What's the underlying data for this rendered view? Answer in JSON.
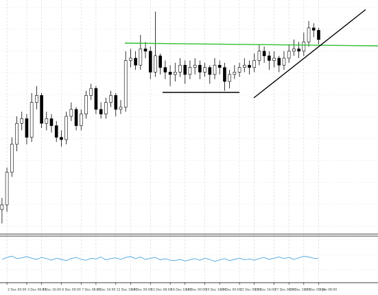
{
  "chart_data": {
    "type": "candlestick",
    "open": [
      10,
      12,
      26,
      38,
      47,
      49,
      41,
      56,
      59,
      47,
      49,
      46,
      41,
      40,
      50,
      53,
      46,
      51,
      59,
      62,
      53,
      51,
      56,
      59,
      53,
      54,
      74,
      75,
      72,
      79,
      78,
      69,
      76,
      71,
      69,
      68,
      69,
      72,
      68,
      71,
      72,
      69,
      71,
      68,
      72,
      71,
      65,
      68,
      69,
      71,
      72,
      71,
      74,
      78,
      76,
      74,
      75,
      72,
      75,
      78,
      79,
      78,
      82,
      88,
      87
    ],
    "high": [
      15,
      28,
      41,
      50,
      52,
      51,
      60,
      63,
      60,
      52,
      51,
      48,
      44,
      52,
      56,
      54,
      53,
      61,
      64,
      63,
      56,
      58,
      61,
      60,
      57,
      78,
      79,
      78,
      85,
      82,
      80,
      95,
      77,
      74,
      72,
      73,
      75,
      74,
      74,
      75,
      74,
      73,
      72,
      75,
      74,
      73,
      70,
      72,
      73,
      75,
      74,
      77,
      81,
      80,
      78,
      78,
      76,
      78,
      81,
      83,
      82,
      86,
      91,
      90,
      88
    ],
    "low": [
      4,
      9,
      24,
      35,
      44,
      38,
      39,
      53,
      45,
      44,
      43,
      39,
      37,
      38,
      48,
      44,
      44,
      49,
      57,
      51,
      49,
      49,
      54,
      50,
      51,
      52,
      71,
      70,
      70,
      75,
      66,
      67,
      68,
      66,
      63,
      65,
      67,
      64,
      66,
      68,
      66,
      67,
      64,
      66,
      68,
      61,
      62,
      66,
      67,
      69,
      68,
      69,
      72,
      73,
      70,
      71,
      69,
      70,
      73,
      76,
      75,
      76,
      80,
      84,
      81
    ],
    "close": [
      12,
      26,
      38,
      47,
      49,
      41,
      56,
      59,
      47,
      49,
      46,
      41,
      40,
      50,
      53,
      46,
      51,
      59,
      62,
      53,
      51,
      56,
      59,
      53,
      54,
      74,
      75,
      72,
      79,
      78,
      69,
      76,
      71,
      69,
      68,
      69,
      72,
      68,
      71,
      72,
      69,
      71,
      68,
      72,
      71,
      65,
      68,
      69,
      71,
      72,
      71,
      74,
      78,
      76,
      74,
      75,
      72,
      75,
      78,
      79,
      78,
      82,
      88,
      87,
      83
    ],
    "ylim": [
      0,
      100
    ],
    "xlim": [
      -0.4,
      76
    ],
    "xticks": [
      {
        "value": 1,
        "label": "2 Dec 00:00"
      },
      {
        "value": 5,
        "label": "3 Dec 08:00"
      },
      {
        "value": 8,
        "label": "4 Dec 16:00"
      },
      {
        "value": 12,
        "label": "6 Dec 00:00"
      },
      {
        "value": 16,
        "label": "7 Dec 08:00"
      },
      {
        "value": 19,
        "label": "9 Dec 16:00"
      },
      {
        "value": 23,
        "label": "12 Dec 16:00"
      },
      {
        "value": 26,
        "label": "14 Dec 00:00"
      },
      {
        "value": 30,
        "label": "15 Dec 08:00"
      },
      {
        "value": 34,
        "label": "16 Dec 16:00"
      },
      {
        "value": 37,
        "label": "18 Dec 00:00"
      },
      {
        "value": 41,
        "label": "20 Dec 16:00"
      },
      {
        "value": 44,
        "label": "21 Dec 00:00"
      },
      {
        "value": 48,
        "label": "22 Dec 08:00"
      },
      {
        "value": 51,
        "label": "23 Dec 16:00"
      },
      {
        "value": 55,
        "label": "27 Dec 08:00"
      },
      {
        "value": 58,
        "label": "28 Dec 16:00"
      },
      {
        "value": 61,
        "label": "30 Dec 00:00"
      },
      {
        "value": 64,
        "label": "2 Jan 08:00"
      }
    ],
    "up_color": "#ffffff",
    "down_color": "#000000",
    "indicator": {
      "color": "#4aa3df",
      "ylim": [
        0,
        100
      ],
      "values": [
        50,
        55,
        58,
        52,
        54,
        57,
        53,
        50,
        55,
        52,
        48,
        53,
        50,
        47,
        52,
        55,
        50,
        48,
        53,
        51,
        56,
        49,
        52,
        54,
        50,
        55,
        57,
        52,
        56,
        50,
        53,
        55,
        49,
        52,
        48,
        47,
        50,
        46,
        49,
        52,
        48,
        53,
        50,
        45,
        49,
        52,
        47,
        50,
        53,
        49,
        51,
        48,
        52,
        55,
        50,
        53,
        56,
        52,
        55,
        50,
        54,
        58,
        56,
        53,
        52
      ]
    }
  }
}
